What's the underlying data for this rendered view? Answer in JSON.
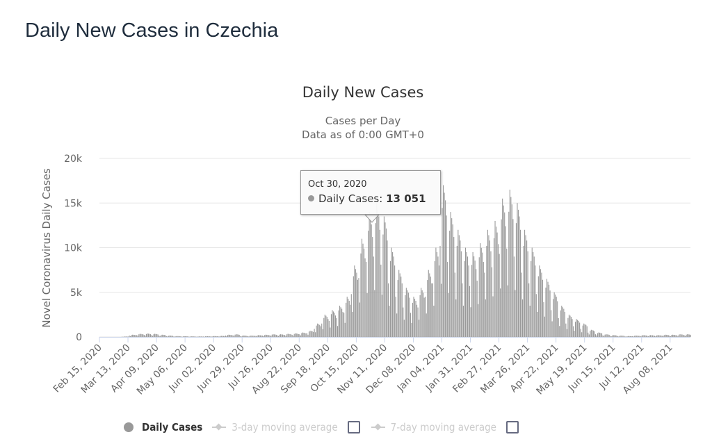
{
  "page_title": "Daily New Cases in Czechia",
  "chart_data": {
    "type": "bar",
    "title": "Daily New Cases",
    "subtitle_line1": "Cases per Day",
    "subtitle_line2": "Data as of 0:00 GMT+0",
    "ylabel": "Novel Coronavirus Daily Cases",
    "ylim": [
      0,
      20000
    ],
    "y_ticks": [
      {
        "v": 0,
        "label": "0"
      },
      {
        "v": 5000,
        "label": "5k"
      },
      {
        "v": 10000,
        "label": "10k"
      },
      {
        "v": 15000,
        "label": "15k"
      },
      {
        "v": 20000,
        "label": "20k"
      }
    ],
    "x_start": "Feb 15, 2020",
    "x_tick_every_days": 27,
    "x_ticks": [
      "Feb 15, 2020",
      "Mar 13, 2020",
      "Apr 09, 2020",
      "May 06, 2020",
      "Jun 02, 2020",
      "Jun 29, 2020",
      "Jul 26, 2020",
      "Aug 22, 2020",
      "Sep 18, 2020",
      "Oct 15, 2020",
      "Nov 11, 2020",
      "Dec 08, 2020",
      "Jan 04, 2021",
      "Jan 31, 2021",
      "Feb 27, 2021",
      "Mar 26, 2021",
      "Apr 22, 2021",
      "May 19, 2021",
      "Jun 15, 2021",
      "Jul 12, 2021",
      "Aug 08, 2021"
    ],
    "grid": true,
    "series": [
      {
        "name": "Daily Cases",
        "color": "#999999",
        "weekly_peak_values": [
          0,
          0,
          0,
          50,
          250,
          350,
          380,
          350,
          250,
          150,
          100,
          80,
          70,
          60,
          80,
          100,
          120,
          250,
          300,
          150,
          150,
          200,
          250,
          300,
          300,
          350,
          400,
          500,
          700,
          1500,
          2500,
          3000,
          3500,
          4500,
          8000,
          11000,
          14000,
          15000,
          13500,
          10000,
          7500,
          5500,
          4500,
          5500,
          7500,
          10000,
          17000,
          14000,
          12000,
          10000,
          9500,
          10500,
          12000,
          13000,
          15500,
          16500,
          15000,
          12000,
          10000,
          8000,
          6500,
          5000,
          3500,
          2500,
          2000,
          1500,
          800,
          500,
          300,
          200,
          150,
          100,
          150,
          200,
          200,
          200,
          250,
          250,
          300,
          300
        ],
        "weekday_ratio": [
          0.6,
          0.35,
          0.85,
          1.0,
          0.95,
          0.9,
          0.8
        ]
      }
    ],
    "tooltip": {
      "date": "Oct 30, 2020",
      "label": "Daily Cases:",
      "value": "13 051"
    },
    "legend": [
      "Daily Cases",
      "3-day moving average",
      "7-day moving average"
    ],
    "legend_position": "bottom"
  }
}
